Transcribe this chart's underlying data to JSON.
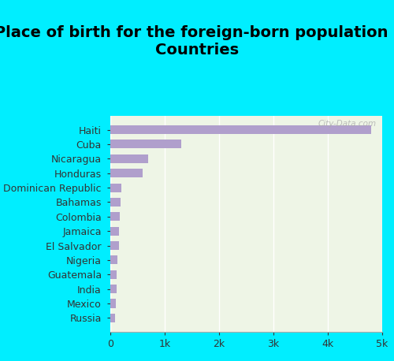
{
  "title": "Place of birth for the foreign-born population -\nCountries",
  "categories": [
    "Haiti",
    "Cuba",
    "Nicaragua",
    "Honduras",
    "Dominican Republic",
    "Bahamas",
    "Colombia",
    "Jamaica",
    "El Salvador",
    "Nigeria",
    "Guatemala",
    "India",
    "Mexico",
    "Russia"
  ],
  "values": [
    4800,
    1300,
    700,
    600,
    200,
    190,
    175,
    160,
    155,
    130,
    120,
    110,
    100,
    90
  ],
  "bar_color": "#b09fcc",
  "background_color": "#00eeff",
  "plot_bg_color": "#eef5e6",
  "title_fontsize": 14,
  "tick_label_fontsize": 9,
  "xlim": [
    0,
    5000
  ],
  "xticks": [
    0,
    1000,
    2000,
    3000,
    4000,
    5000
  ],
  "xtick_labels": [
    "0",
    "1k",
    "2k",
    "3k",
    "4k",
    "5k"
  ],
  "watermark": "City-Data.com"
}
